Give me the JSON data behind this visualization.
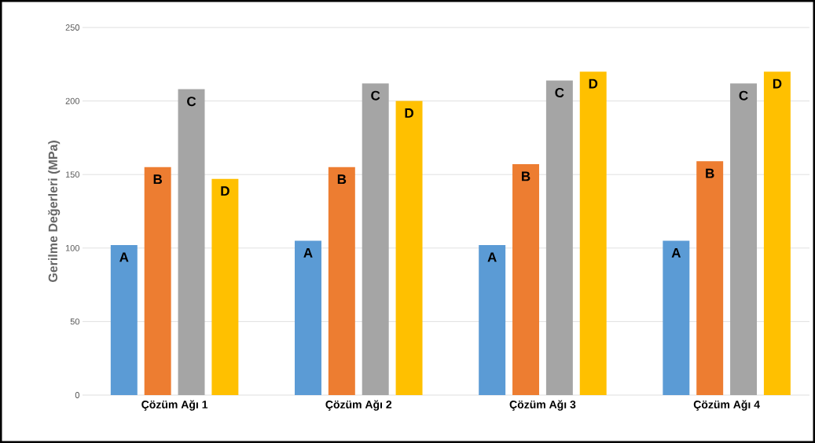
{
  "chart_data": {
    "type": "bar",
    "ylabel": "Gerilme Değerleri (MPa)",
    "categories": [
      "Çözüm Ağı 1",
      "Çözüm Ağı 2",
      "Çözüm Ağı 3",
      "Çözüm Ağı 4"
    ],
    "series": [
      {
        "name": "A",
        "color": "#5b9bd5",
        "values": [
          102,
          105,
          102,
          105
        ]
      },
      {
        "name": "B",
        "color": "#ed7d31",
        "values": [
          155,
          155,
          157,
          159
        ]
      },
      {
        "name": "C",
        "color": "#a5a5a5",
        "values": [
          208,
          212,
          214,
          212
        ]
      },
      {
        "name": "D",
        "color": "#ffc000",
        "values": [
          147,
          200,
          220,
          220
        ]
      }
    ],
    "ylim": [
      0,
      250
    ],
    "yticks": [
      0,
      50,
      100,
      150,
      200,
      250
    ],
    "grid": "y"
  }
}
